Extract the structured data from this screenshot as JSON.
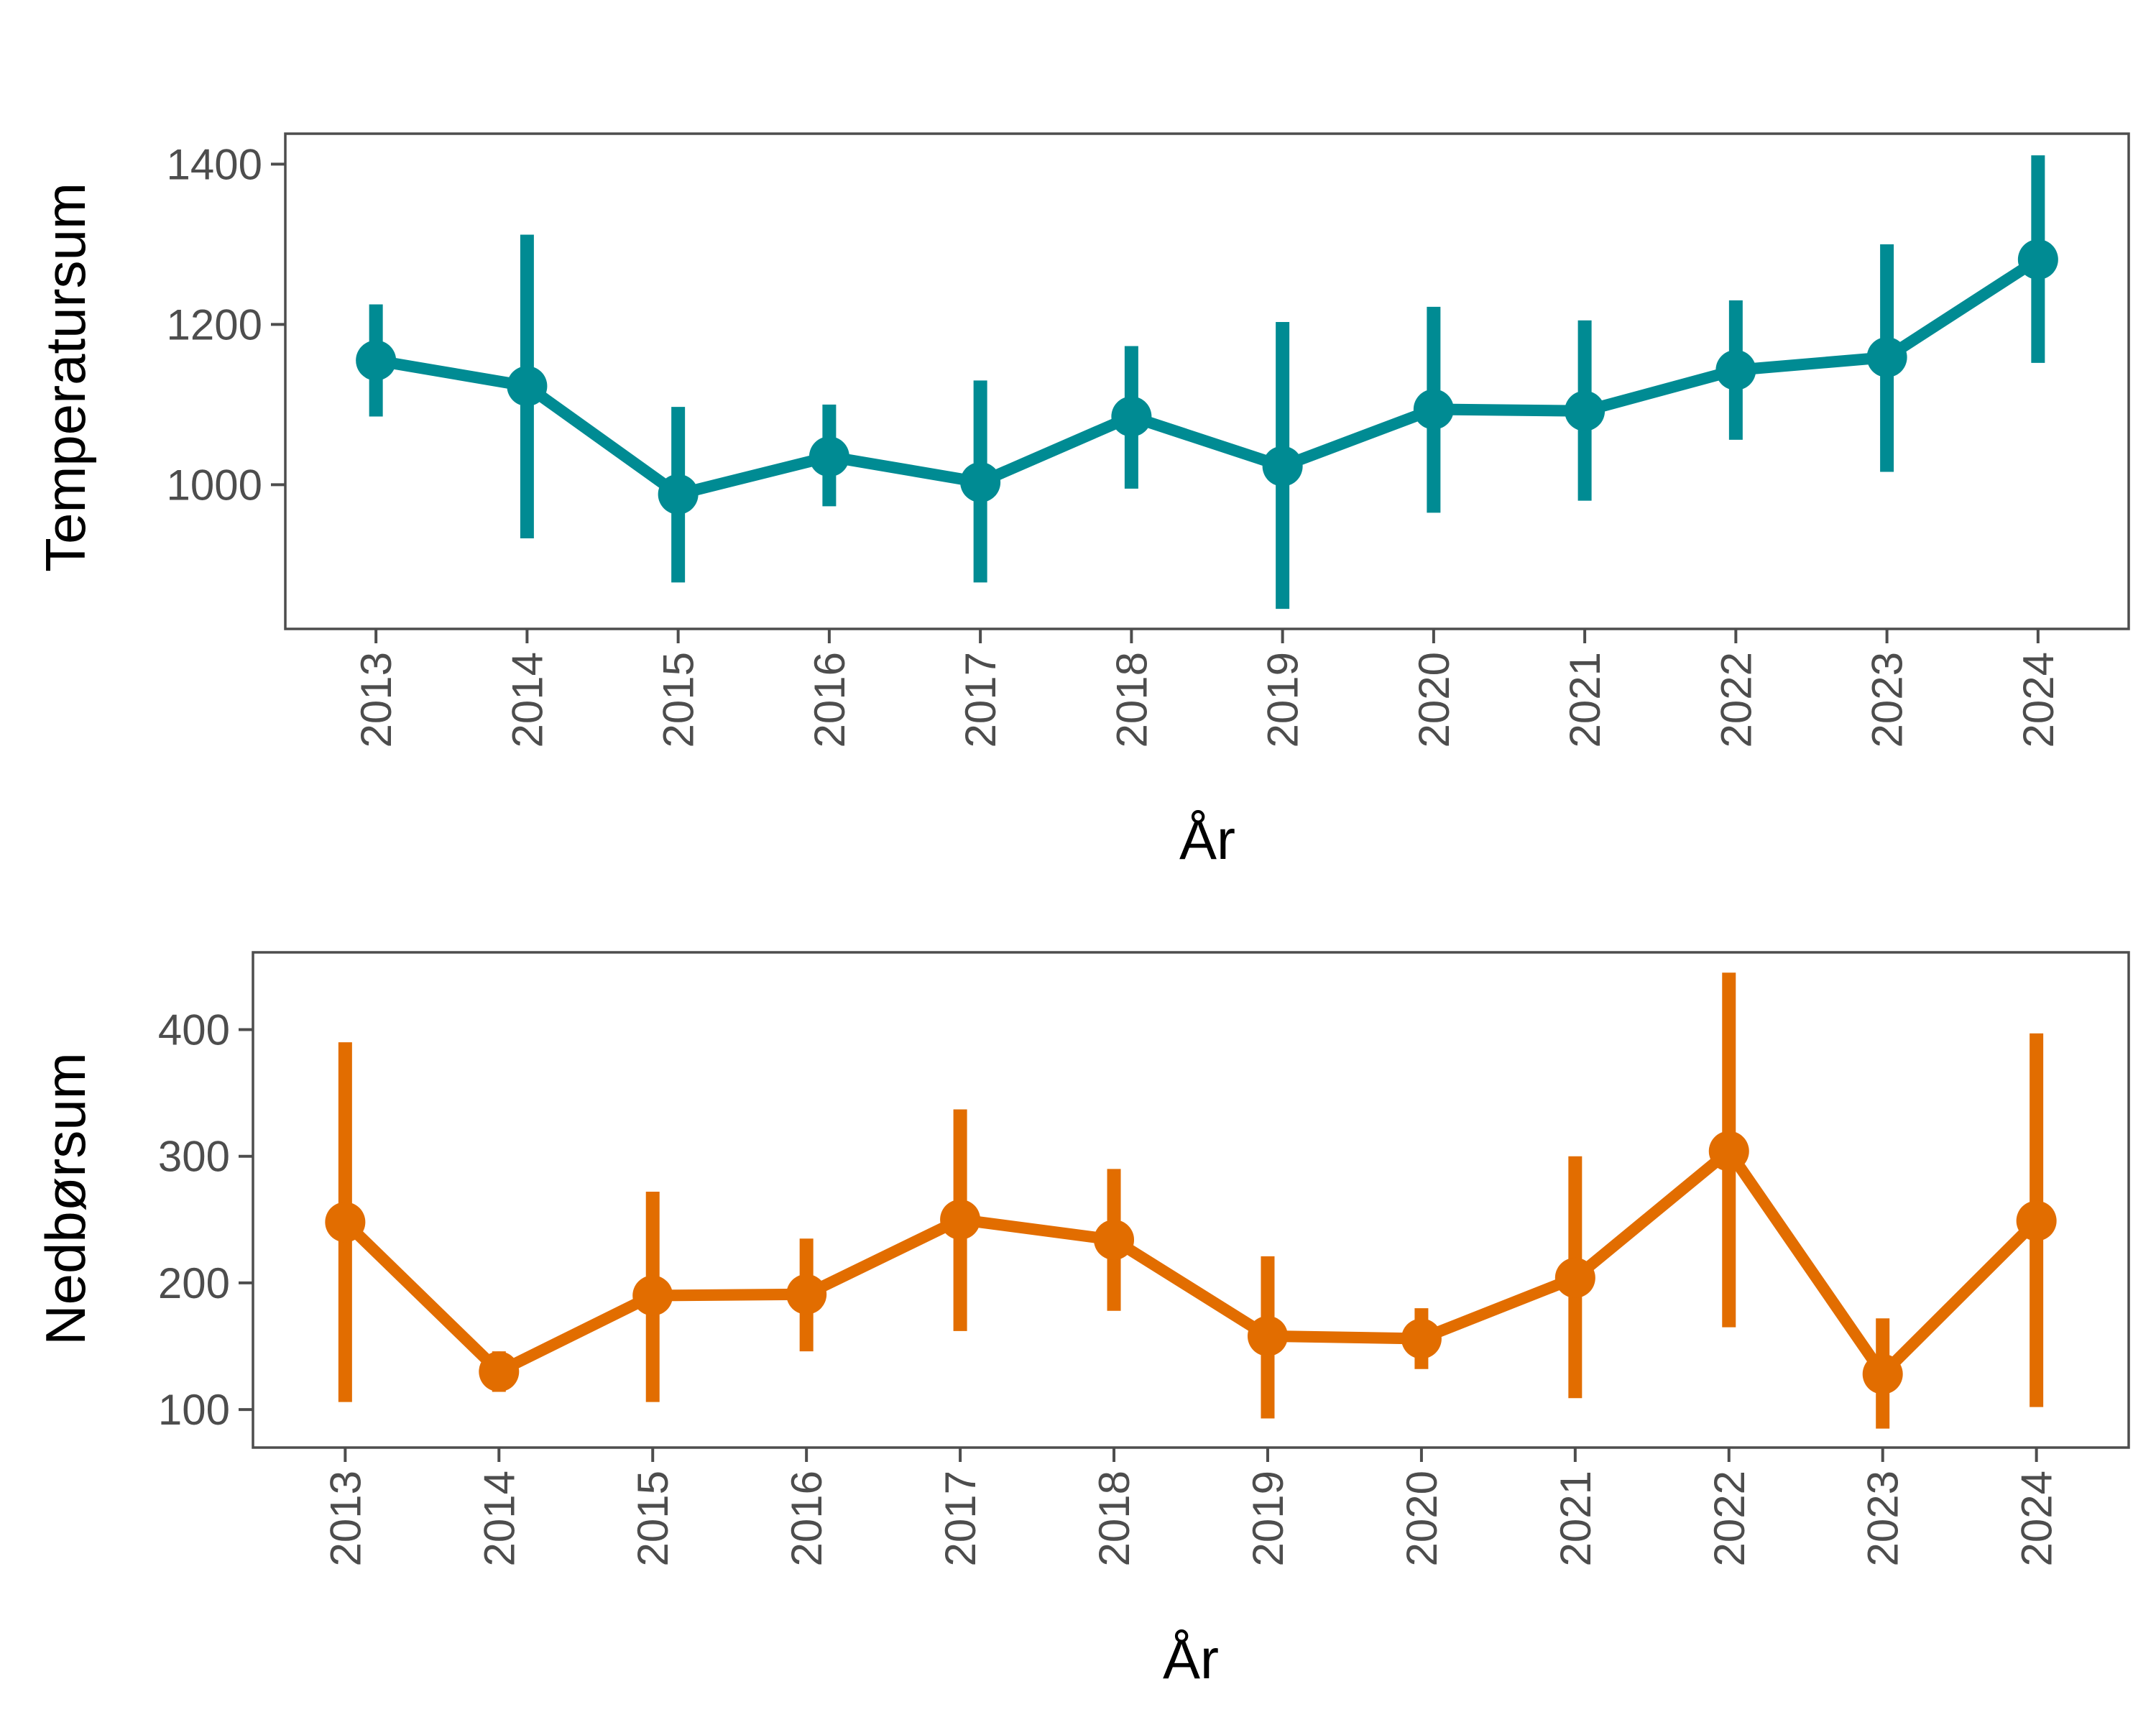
{
  "chart_data": [
    {
      "type": "line",
      "title": "",
      "xlabel": "År",
      "ylabel": "Temperatursum",
      "categories": [
        "2013",
        "2014",
        "2015",
        "2016",
        "2017",
        "2018",
        "2019",
        "2020",
        "2021",
        "2022",
        "2023",
        "2024"
      ],
      "series": [
        {
          "values": [
            1155,
            1123,
            988,
            1035,
            1003,
            1085,
            1023,
            1094,
            1092,
            1143,
            1159,
            1281
          ],
          "lower": [
            1085,
            933,
            878,
            973,
            878,
            995,
            845,
            965,
            980,
            1056,
            1016,
            1152
          ],
          "upper": [
            1225,
            1312,
            1097,
            1100,
            1130,
            1173,
            1203,
            1222,
            1205,
            1230,
            1300,
            1411
          ],
          "color": "#008b93"
        }
      ],
      "yticks": [
        1000,
        1200,
        1400
      ],
      "ylim": [
        820,
        1438
      ],
      "grid": false
    },
    {
      "type": "line",
      "title": "",
      "xlabel": "År",
      "ylabel": "Nedbørsum",
      "categories": [
        "2013",
        "2014",
        "2015",
        "2016",
        "2017",
        "2018",
        "2019",
        "2020",
        "2021",
        "2022",
        "2023",
        "2024"
      ],
      "series": [
        {
          "values": [
            248,
            130,
            190,
            191,
            250,
            234,
            158,
            156,
            204,
            304,
            128,
            249
          ],
          "lower": [
            106,
            114,
            106,
            146,
            162,
            178,
            93,
            132,
            109,
            165,
            85,
            102
          ],
          "upper": [
            390,
            146,
            272,
            235,
            337,
            290,
            221,
            180,
            300,
            445,
            172,
            397
          ],
          "color": "#e26d00"
        }
      ],
      "yticks": [
        100,
        200,
        300,
        400
      ],
      "ylim": [
        70,
        461
      ],
      "grid": false
    }
  ]
}
